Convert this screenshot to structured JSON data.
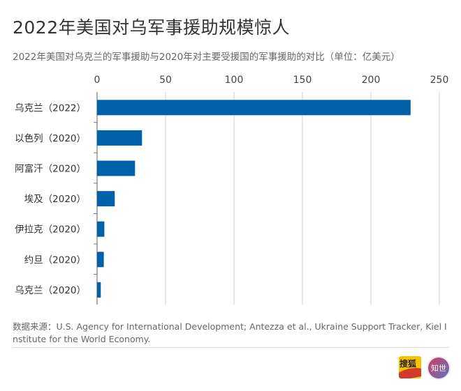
{
  "title": "2022年美国对乌军事援助规模惊人",
  "chart_data": {
    "type": "bar",
    "orientation": "horizontal",
    "title": "2022年美国对乌军事援助规模惊人",
    "subtitle": "2022年美国对乌克兰的军事援助与2020年对主要受援国的军事援助的对比（单位：亿美元）",
    "categories": [
      "乌克兰（2022）",
      "以色列（2020）",
      "阿富汗（2020）",
      "埃及（2020）",
      "伊拉克（2020）",
      "约旦（2020）",
      "乌克兰（2020）"
    ],
    "values": [
      229,
      32.8,
      27.7,
      12.9,
      5.3,
      4.9,
      2.7
    ],
    "xlim": [
      0,
      250
    ],
    "xticks": [
      0,
      50,
      100,
      150,
      200,
      250
    ],
    "grid": true,
    "bar_color": "#0061ab",
    "xlabel": "",
    "ylabel": ""
  },
  "source": "数据来源：U.S. Agency for International Development; Antezza et al., Ukraine Support Tracker, Kiel Institute for the World Economy.",
  "logos": {
    "sohu": "搜狐",
    "zhishi": "知世"
  }
}
